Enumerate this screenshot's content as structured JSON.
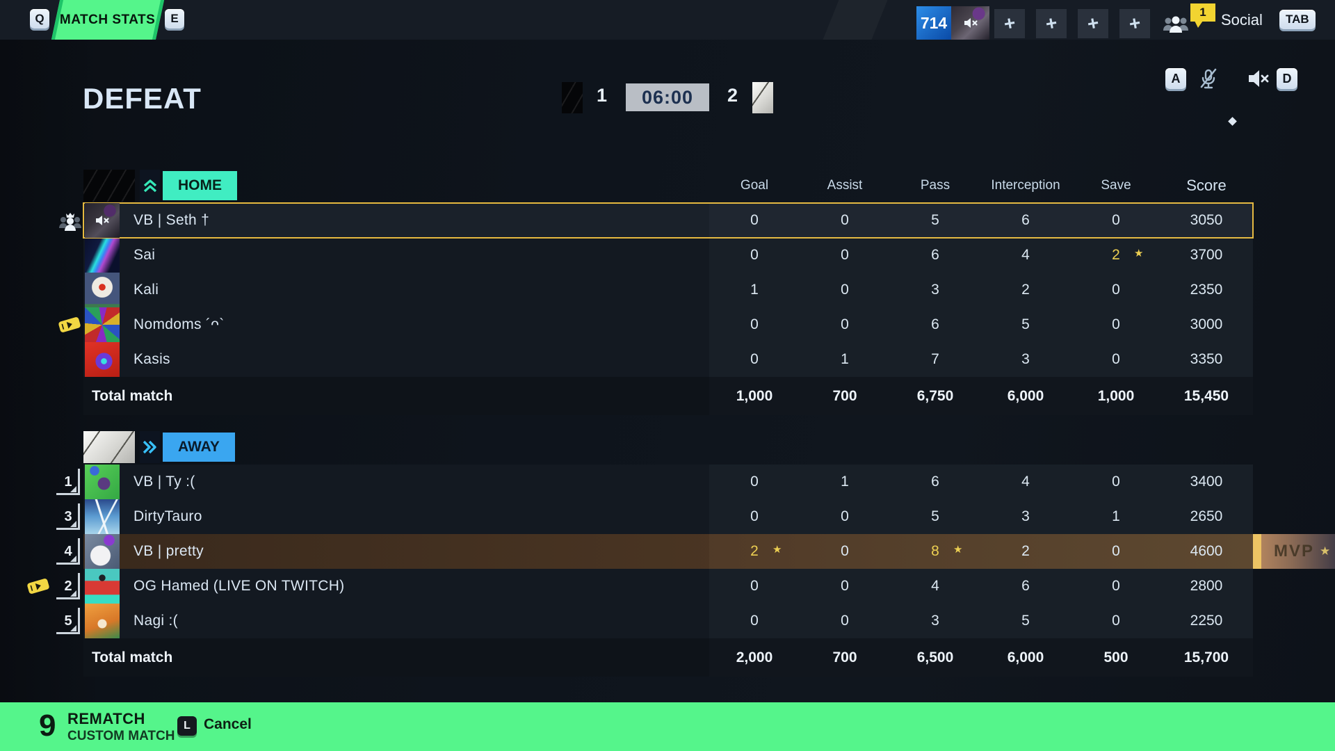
{
  "colors": {
    "accent_green": "#55f58b",
    "home_teal": "#40edc2",
    "away_blue": "#3aa6f0",
    "highlight_yellow": "#eccf52",
    "selection_gold": "#e6b93f",
    "timer_bg": "#b9bec5",
    "counter_blue": "#1c7ae0"
  },
  "top_bar": {
    "key_prev": "Q",
    "active_tab": "MATCH STATS",
    "key_next": "E",
    "counter": "714",
    "plus_buttons": [
      "+",
      "+",
      "+",
      "+"
    ],
    "social": {
      "badge": "1",
      "label": "Social",
      "key": "TAB"
    }
  },
  "match_header": {
    "result": "DEFEAT",
    "home_score": "1",
    "timer": "06:00",
    "away_score": "2",
    "key_left": "A",
    "key_right": "D"
  },
  "columns": [
    "Goal",
    "Assist",
    "Pass",
    "Interception",
    "Save",
    "Score"
  ],
  "teams": {
    "home": {
      "label": "HOME",
      "total_label": "Total match",
      "totals": [
        "1,000",
        "700",
        "6,750",
        "6,000",
        "1,000",
        "15,450"
      ],
      "players": [
        {
          "id": "seth",
          "name": "VB | Seth †",
          "stats": [
            "0",
            "0",
            "5",
            "6",
            "0",
            "3050"
          ],
          "starred": [],
          "selected": true,
          "muted": true,
          "party_leader": true
        },
        {
          "id": "sai",
          "name": "Sai",
          "stats": [
            "0",
            "0",
            "6",
            "4",
            "2",
            "3700"
          ],
          "starred": [
            4
          ]
        },
        {
          "id": "kali",
          "name": "Kali",
          "stats": [
            "1",
            "0",
            "3",
            "2",
            "0",
            "2350"
          ],
          "starred": []
        },
        {
          "id": "nomdoms",
          "name": "Nomdoms ´ᴖ`",
          "stats": [
            "0",
            "0",
            "6",
            "5",
            "0",
            "3000"
          ],
          "starred": [],
          "ticket": true
        },
        {
          "id": "kasis",
          "name": "Kasis",
          "stats": [
            "0",
            "1",
            "7",
            "3",
            "0",
            "3350"
          ],
          "starred": []
        }
      ]
    },
    "away": {
      "label": "AWAY",
      "total_label": "Total match",
      "totals": [
        "2,000",
        "700",
        "6,500",
        "6,000",
        "500",
        "15,700"
      ],
      "players": [
        {
          "id": "ty",
          "name": "VB | Ty :(",
          "rank": "1",
          "stats": [
            "0",
            "1",
            "6",
            "4",
            "0",
            "3400"
          ],
          "starred": []
        },
        {
          "id": "dirtytauro",
          "name": "DirtyTauro",
          "rank": "3",
          "stats": [
            "0",
            "0",
            "5",
            "3",
            "1",
            "2650"
          ],
          "starred": []
        },
        {
          "id": "pretty",
          "name": "VB | pretty",
          "rank": "4",
          "stats": [
            "2",
            "0",
            "8",
            "2",
            "0",
            "4600"
          ],
          "starred": [
            0,
            2
          ],
          "mvp": true
        },
        {
          "id": "hamed",
          "name": "OG Hamed (LIVE ON TWITCH)",
          "rank": "2",
          "stats": [
            "0",
            "0",
            "4",
            "6",
            "0",
            "2800"
          ],
          "starred": [],
          "ticket": true
        },
        {
          "id": "nagi",
          "name": "Nagi :(",
          "rank": "5",
          "stats": [
            "0",
            "0",
            "3",
            "5",
            "0",
            "2250"
          ],
          "starred": []
        }
      ]
    }
  },
  "mvp": {
    "label": "MVP",
    "star": "★"
  },
  "bottom_bar": {
    "hotkey": "9",
    "title": "REMATCH",
    "subtitle": "CUSTOM MATCH",
    "cancel_key": "L",
    "cancel_label": "Cancel"
  }
}
